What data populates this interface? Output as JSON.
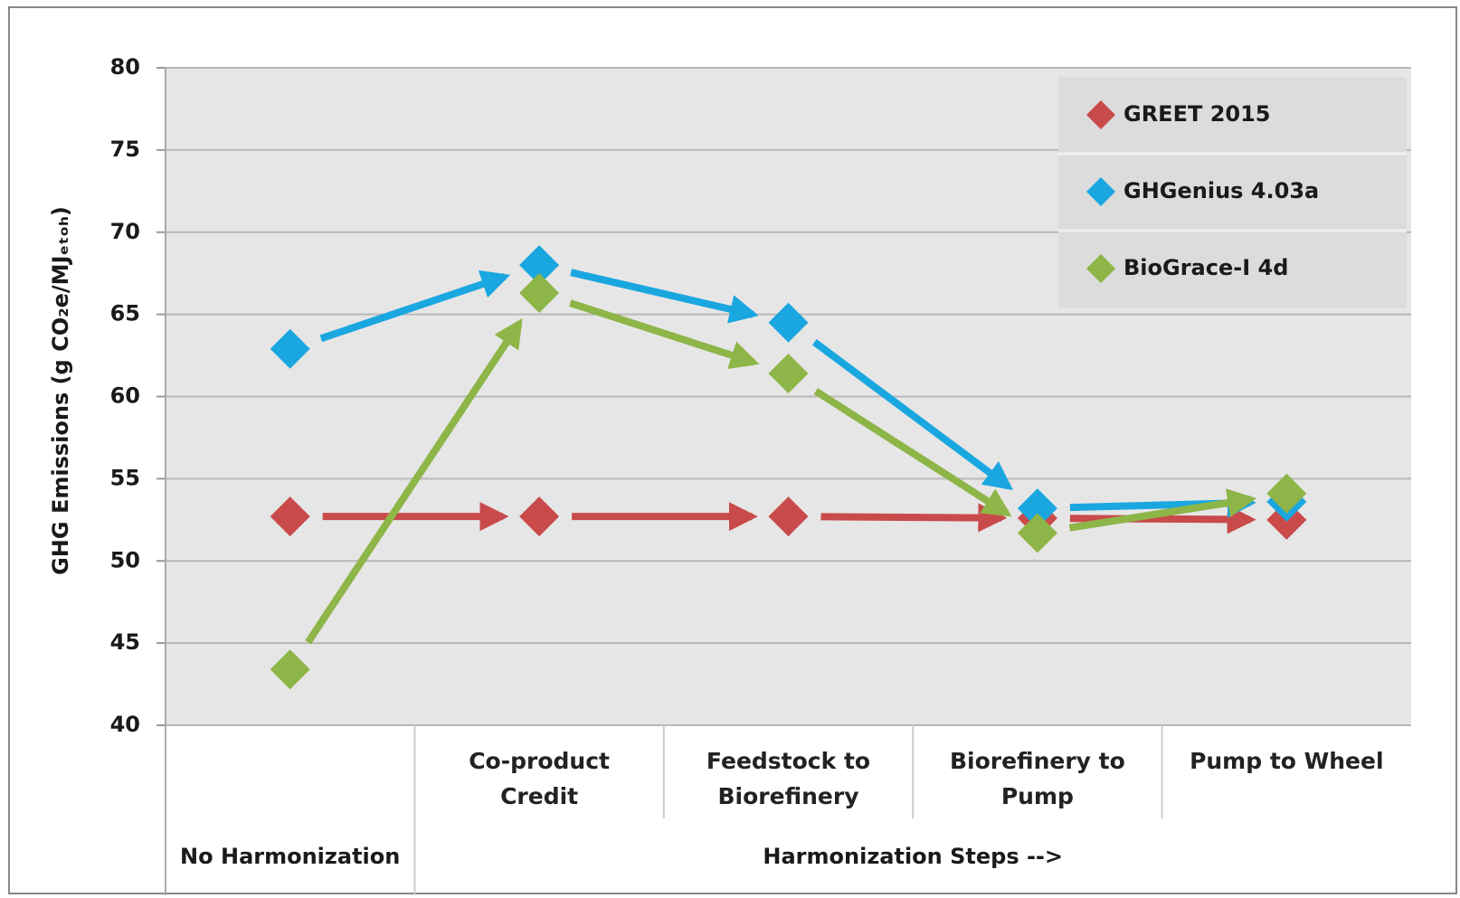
{
  "chart_data": {
    "type": "line",
    "y_label": "GHG Emissions (g CO₂e/MJₑₜₒₕ)",
    "categories": [
      null,
      "Co-product Credit",
      "Feedstock to Biorefinery",
      "Biorefinery to Pump",
      "Pump to Wheel"
    ],
    "category_groups": [
      {
        "label": "No Harmonization",
        "span": 1
      },
      {
        "label": "Harmonization Steps -->",
        "span": 4
      }
    ],
    "series": [
      {
        "name": "GREET 2015",
        "color": "#c94a4a",
        "values": [
          52.7,
          52.7,
          52.7,
          52.6,
          52.5
        ]
      },
      {
        "name": "GHGenius 4.03a",
        "color": "#1aa7e0",
        "values": [
          62.9,
          68.0,
          64.5,
          53.2,
          53.6
        ]
      },
      {
        "name": "BioGrace-I 4d",
        "color": "#8db547",
        "values": [
          43.4,
          66.3,
          61.4,
          51.7,
          54.1
        ]
      }
    ],
    "ylim": [
      40,
      80
    ],
    "yticks": [
      40,
      45,
      50,
      55,
      60,
      65,
      70,
      75,
      80
    ],
    "grid": true,
    "legend": "upper right"
  }
}
